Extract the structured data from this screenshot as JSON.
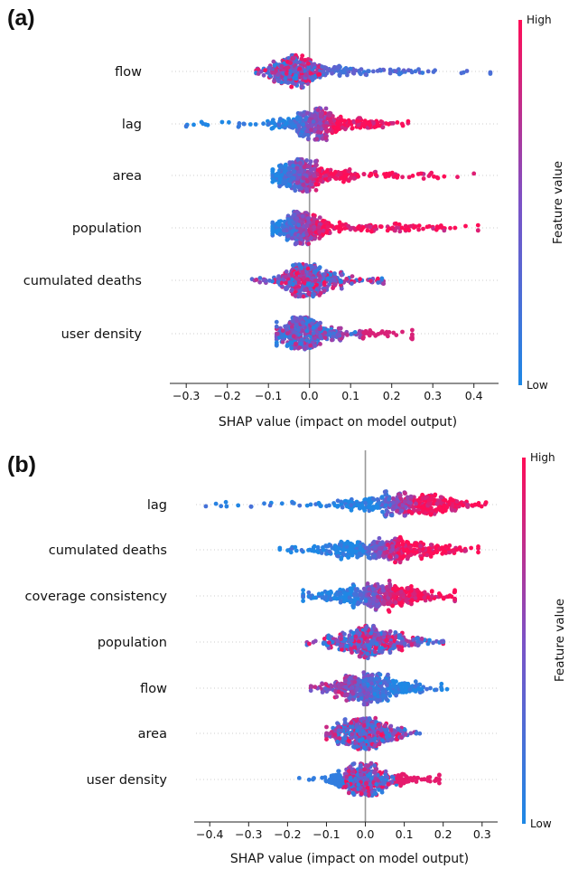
{
  "chart_data": [
    {
      "type": "scatter",
      "subtype": "shap-beeswarm",
      "panel_label": "(a)",
      "xlabel": "SHAP value (impact on model output)",
      "xticks": [
        -0.3,
        -0.2,
        -0.1,
        0.0,
        0.1,
        0.2,
        0.3,
        0.4
      ],
      "xtick_labels": [
        "−0.3",
        "−0.2",
        "−0.1",
        "0.0",
        "0.1",
        "0.2",
        "0.3",
        "0.4"
      ],
      "xlim": [
        -0.34,
        0.46
      ],
      "colorbar": {
        "label": "Feature value",
        "high": "High",
        "low": "Low",
        "low_color": "#1e88e5",
        "high_color": "#ff0d57"
      },
      "features": [
        {
          "name": "flow",
          "min": -0.13,
          "max": 0.44,
          "center": -0.03,
          "peak_width": 0.035,
          "right_tail": 0.38,
          "left_tail": 0.1,
          "color_trend": "mixed-left-blue-right"
        },
        {
          "name": "lag",
          "min": -0.3,
          "max": 0.24,
          "center": 0.01,
          "peak_width": 0.04,
          "right_tail": 0.23,
          "left_tail": 0.31,
          "color_trend": "red-right-blue-left"
        },
        {
          "name": "area",
          "min": -0.09,
          "max": 0.4,
          "center": -0.02,
          "peak_width": 0.035,
          "right_tail": 0.42,
          "left_tail": 0.07,
          "color_trend": "red-right"
        },
        {
          "name": "population",
          "min": -0.09,
          "max": 0.41,
          "center": -0.02,
          "peak_width": 0.035,
          "right_tail": 0.43,
          "left_tail": 0.07,
          "color_trend": "red-right"
        },
        {
          "name": "cumulated deaths",
          "min": -0.14,
          "max": 0.18,
          "center": -0.01,
          "peak_width": 0.03,
          "right_tail": 0.19,
          "left_tail": 0.13,
          "color_trend": "mixed"
        },
        {
          "name": "user density",
          "min": -0.08,
          "max": 0.25,
          "center": -0.02,
          "peak_width": 0.03,
          "right_tail": 0.27,
          "left_tail": 0.06,
          "color_trend": "blue-mixed"
        }
      ]
    },
    {
      "type": "scatter",
      "subtype": "shap-beeswarm",
      "panel_label": "(b)",
      "xlabel": "SHAP value (impact on model output)",
      "xticks": [
        -0.4,
        -0.3,
        -0.2,
        -0.1,
        0.0,
        0.1,
        0.2,
        0.3
      ],
      "xtick_labels": [
        "−0.4",
        "−0.3",
        "−0.2",
        "−0.1",
        "0.0",
        "0.1",
        "0.2",
        "0.3"
      ],
      "xlim": [
        -0.44,
        0.34
      ],
      "colorbar": {
        "label": "Feature value",
        "high": "High",
        "low": "Low",
        "low_color": "#1e88e5",
        "high_color": "#ff0d57"
      },
      "features": [
        {
          "name": "lag",
          "min": -0.41,
          "max": 0.31,
          "center": 0.08,
          "peak_width": 0.09,
          "right_tail": 0.22,
          "left_tail": 0.46,
          "color_trend": "red-right-blue-left"
        },
        {
          "name": "cumulated deaths",
          "min": -0.22,
          "max": 0.29,
          "center": 0.04,
          "peak_width": 0.09,
          "right_tail": 0.24,
          "left_tail": 0.26,
          "color_trend": "red-right-blue-left"
        },
        {
          "name": "coverage consistency",
          "min": -0.16,
          "max": 0.23,
          "center": 0.02,
          "peak_width": 0.08,
          "right_tail": 0.2,
          "left_tail": 0.18,
          "color_trend": "red-right-blue-left"
        },
        {
          "name": "population",
          "min": -0.15,
          "max": 0.2,
          "center": 0.0,
          "peak_width": 0.05,
          "right_tail": 0.2,
          "left_tail": 0.15,
          "color_trend": "mixed"
        },
        {
          "name": "flow",
          "min": -0.14,
          "max": 0.21,
          "center": 0.0,
          "peak_width": 0.05,
          "right_tail": 0.21,
          "left_tail": 0.14,
          "color_trend": "blue-right"
        },
        {
          "name": "area",
          "min": -0.1,
          "max": 0.14,
          "center": -0.01,
          "peak_width": 0.04,
          "right_tail": 0.15,
          "left_tail": 0.09,
          "color_trend": "mixed"
        },
        {
          "name": "user density",
          "min": -0.17,
          "max": 0.19,
          "center": 0.0,
          "peak_width": 0.04,
          "right_tail": 0.19,
          "left_tail": 0.17,
          "color_trend": "blue-left-red-right"
        }
      ]
    }
  ]
}
